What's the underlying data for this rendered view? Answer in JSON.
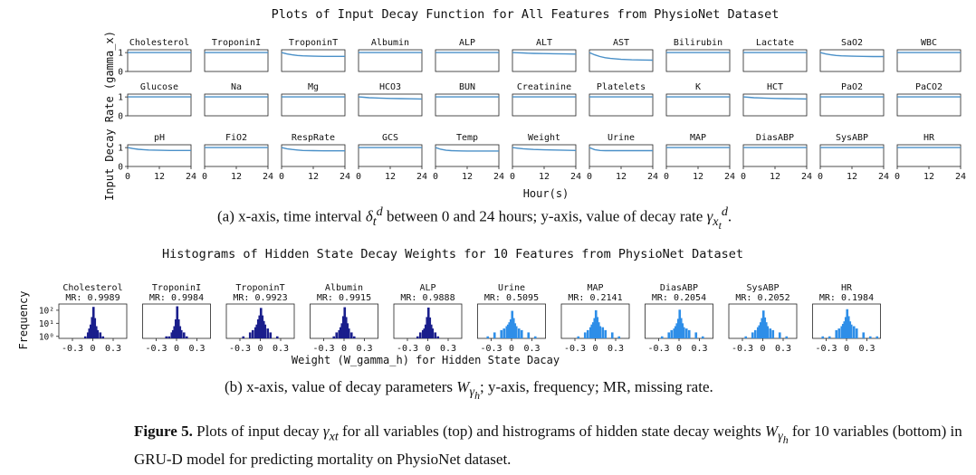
{
  "chart_data": [
    {
      "type": "line",
      "title": "Plots of Input Decay Function for All Features from PhysioNet Dataset",
      "xlabel": "Hour(s)",
      "ylabel": "Input Decay Rate (gamma_x)",
      "xticks": [
        "0",
        "12",
        "24"
      ],
      "yticks": [
        "0",
        "1"
      ],
      "xlim": [
        0,
        24
      ],
      "ylim": [
        0,
        1.15
      ],
      "line_color": "#4a90c8",
      "series": [
        {
          "name": "Cholesterol",
          "x": [
            0,
            2,
            4,
            6,
            8,
            12,
            16,
            20,
            24
          ],
          "y": [
            1,
            1,
            1,
            1,
            1,
            1,
            1,
            1,
            1
          ]
        },
        {
          "name": "TroponinI",
          "x": [
            0,
            2,
            4,
            6,
            8,
            12,
            16,
            20,
            24
          ],
          "y": [
            1,
            1,
            1,
            1,
            1,
            1,
            1,
            1,
            1
          ]
        },
        {
          "name": "TroponinT",
          "x": [
            0,
            2,
            4,
            6,
            8,
            12,
            16,
            20,
            24
          ],
          "y": [
            1,
            0.93,
            0.88,
            0.85,
            0.83,
            0.81,
            0.8,
            0.8,
            0.8
          ]
        },
        {
          "name": "Albumin",
          "x": [
            0,
            2,
            4,
            6,
            8,
            12,
            16,
            20,
            24
          ],
          "y": [
            1,
            1,
            1,
            1,
            1,
            1,
            1,
            1,
            1
          ]
        },
        {
          "name": "ALP",
          "x": [
            0,
            2,
            4,
            6,
            8,
            12,
            16,
            20,
            24
          ],
          "y": [
            1,
            1,
            1,
            1,
            1,
            1,
            1,
            1,
            1
          ]
        },
        {
          "name": "ALT",
          "x": [
            0,
            2,
            4,
            6,
            8,
            12,
            16,
            20,
            24
          ],
          "y": [
            1,
            0.99,
            0.98,
            0.97,
            0.96,
            0.95,
            0.94,
            0.93,
            0.92
          ]
        },
        {
          "name": "AST",
          "x": [
            0,
            2,
            4,
            6,
            8,
            12,
            16,
            20,
            24
          ],
          "y": [
            1,
            0.88,
            0.79,
            0.73,
            0.69,
            0.64,
            0.62,
            0.61,
            0.6
          ]
        },
        {
          "name": "Bilirubin",
          "x": [
            0,
            2,
            4,
            6,
            8,
            12,
            16,
            20,
            24
          ],
          "y": [
            1,
            1,
            1,
            1,
            1,
            1,
            1,
            1,
            1
          ]
        },
        {
          "name": "Lactate",
          "x": [
            0,
            2,
            4,
            6,
            8,
            12,
            16,
            20,
            24
          ],
          "y": [
            1,
            1,
            1,
            1,
            1,
            1,
            1,
            1,
            1
          ]
        },
        {
          "name": "SaO2",
          "x": [
            0,
            2,
            4,
            6,
            8,
            12,
            16,
            20,
            24
          ],
          "y": [
            1,
            0.93,
            0.88,
            0.85,
            0.83,
            0.81,
            0.8,
            0.79,
            0.79
          ]
        },
        {
          "name": "WBC",
          "x": [
            0,
            2,
            4,
            6,
            8,
            12,
            16,
            20,
            24
          ],
          "y": [
            1,
            1,
            1,
            1,
            1,
            1,
            1,
            1,
            1
          ]
        },
        {
          "name": "Glucose",
          "x": [
            0,
            2,
            4,
            6,
            8,
            12,
            16,
            20,
            24
          ],
          "y": [
            1,
            1,
            1,
            1,
            1,
            1,
            1,
            1,
            1
          ]
        },
        {
          "name": "Na",
          "x": [
            0,
            2,
            4,
            6,
            8,
            12,
            16,
            20,
            24
          ],
          "y": [
            1,
            1,
            1,
            1,
            1,
            1,
            1,
            1,
            1
          ]
        },
        {
          "name": "Mg",
          "x": [
            0,
            2,
            4,
            6,
            8,
            12,
            16,
            20,
            24
          ],
          "y": [
            1,
            1,
            1,
            1,
            1,
            1,
            1,
            1,
            1
          ]
        },
        {
          "name": "HCO3",
          "x": [
            0,
            2,
            4,
            6,
            8,
            12,
            16,
            20,
            24
          ],
          "y": [
            1,
            0.98,
            0.96,
            0.95,
            0.94,
            0.92,
            0.91,
            0.9,
            0.89
          ]
        },
        {
          "name": "BUN",
          "x": [
            0,
            2,
            4,
            6,
            8,
            12,
            16,
            20,
            24
          ],
          "y": [
            1,
            1,
            1,
            1,
            1,
            1,
            1,
            1,
            1
          ]
        },
        {
          "name": "Creatinine",
          "x": [
            0,
            2,
            4,
            6,
            8,
            12,
            16,
            20,
            24
          ],
          "y": [
            1,
            1,
            1,
            1,
            1,
            1,
            1,
            1,
            1
          ]
        },
        {
          "name": "Platelets",
          "x": [
            0,
            2,
            4,
            6,
            8,
            12,
            16,
            20,
            24
          ],
          "y": [
            1,
            1,
            1,
            1,
            1,
            1,
            1,
            1,
            1
          ]
        },
        {
          "name": "K",
          "x": [
            0,
            2,
            4,
            6,
            8,
            12,
            16,
            20,
            24
          ],
          "y": [
            1,
            1,
            1,
            1,
            1,
            1,
            1,
            1,
            1
          ]
        },
        {
          "name": "HCT",
          "x": [
            0,
            2,
            4,
            6,
            8,
            12,
            16,
            20,
            24
          ],
          "y": [
            1,
            0.98,
            0.96,
            0.95,
            0.94,
            0.92,
            0.91,
            0.9,
            0.89
          ]
        },
        {
          "name": "PaO2",
          "x": [
            0,
            2,
            4,
            6,
            8,
            12,
            16,
            20,
            24
          ],
          "y": [
            1,
            1,
            1,
            1,
            1,
            1,
            1,
            1,
            1
          ]
        },
        {
          "name": "PaCO2",
          "x": [
            0,
            2,
            4,
            6,
            8,
            12,
            16,
            20,
            24
          ],
          "y": [
            1,
            1,
            1,
            1,
            1,
            1,
            1,
            1,
            1
          ]
        },
        {
          "name": "pH",
          "x": [
            0,
            2,
            4,
            6,
            8,
            12,
            16,
            20,
            24
          ],
          "y": [
            1,
            0.95,
            0.91,
            0.89,
            0.87,
            0.86,
            0.85,
            0.85,
            0.85
          ]
        },
        {
          "name": "FiO2",
          "x": [
            0,
            2,
            4,
            6,
            8,
            12,
            16,
            20,
            24
          ],
          "y": [
            1,
            1,
            1,
            1,
            1,
            1,
            1,
            1,
            1
          ]
        },
        {
          "name": "RespRate",
          "x": [
            0,
            2,
            4,
            6,
            8,
            12,
            16,
            20,
            24
          ],
          "y": [
            1,
            0.94,
            0.9,
            0.87,
            0.85,
            0.84,
            0.83,
            0.83,
            0.83
          ]
        },
        {
          "name": "GCS",
          "x": [
            0,
            2,
            4,
            6,
            8,
            12,
            16,
            20,
            24
          ],
          "y": [
            1,
            1,
            1,
            1,
            1,
            1,
            1,
            1,
            1
          ]
        },
        {
          "name": "Temp",
          "x": [
            0,
            2,
            4,
            6,
            8,
            12,
            16,
            20,
            24
          ],
          "y": [
            1,
            0.91,
            0.86,
            0.84,
            0.83,
            0.82,
            0.82,
            0.82,
            0.82
          ]
        },
        {
          "name": "Weight",
          "x": [
            0,
            2,
            4,
            6,
            8,
            12,
            16,
            20,
            24
          ],
          "y": [
            1,
            0.97,
            0.94,
            0.92,
            0.9,
            0.88,
            0.87,
            0.86,
            0.85
          ]
        },
        {
          "name": "Urine",
          "x": [
            0,
            2,
            4,
            6,
            8,
            12,
            16,
            20,
            24
          ],
          "y": [
            1,
            0.89,
            0.85,
            0.84,
            0.84,
            0.84,
            0.84,
            0.84,
            0.84
          ]
        },
        {
          "name": "MAP",
          "x": [
            0,
            2,
            4,
            6,
            8,
            12,
            16,
            20,
            24
          ],
          "y": [
            1,
            1,
            1,
            1,
            1,
            1,
            1,
            1,
            1
          ]
        },
        {
          "name": "DiasABP",
          "x": [
            0,
            2,
            4,
            6,
            8,
            12,
            16,
            20,
            24
          ],
          "y": [
            1,
            1,
            1,
            1,
            1,
            1,
            1,
            1,
            1
          ]
        },
        {
          "name": "SysABP",
          "x": [
            0,
            2,
            4,
            6,
            8,
            12,
            16,
            20,
            24
          ],
          "y": [
            1,
            1,
            1,
            1,
            1,
            1,
            1,
            1,
            1
          ]
        },
        {
          "name": "HR",
          "x": [
            0,
            2,
            4,
            6,
            8,
            12,
            16,
            20,
            24
          ],
          "y": [
            1,
            1,
            1,
            1,
            1,
            1,
            1,
            1,
            1
          ]
        }
      ]
    },
    {
      "type": "bar",
      "title": "Histograms of Hidden State Decay Weights for 10 Features from PhysioNet Dataset",
      "xlabel": "Weight (W_gamma_h) for Hidden State Dacay",
      "ylabel": "Frequency",
      "xticks": [
        "-0.3",
        "0",
        "0.3"
      ],
      "yticks": [
        "10⁰",
        "10¹",
        "10²"
      ],
      "xlim": [
        -0.5,
        0.5
      ],
      "yscale": "log",
      "ylim": [
        1,
        300
      ],
      "colors": {
        "observed": "#1a1f8c",
        "frequent": "#2e8ee8"
      },
      "mr_prefix": "MR: ",
      "bin_centers": [
        -0.45,
        -0.35,
        -0.25,
        -0.15,
        -0.11,
        -0.07,
        -0.05,
        -0.03,
        -0.01,
        0.01,
        0.03,
        0.05,
        0.07,
        0.11,
        0.15,
        0.25,
        0.35,
        0.45
      ],
      "series": [
        {
          "name": "Cholesterol",
          "mr": "0.9989",
          "color_group": "observed",
          "values": [
            0,
            0,
            0,
            0,
            1,
            2,
            4,
            8,
            30,
            180,
            25,
            6,
            3,
            2,
            1,
            0,
            0,
            0
          ]
        },
        {
          "name": "TroponinI",
          "mr": "0.9984",
          "color_group": "observed",
          "values": [
            0,
            0,
            0,
            1,
            1,
            2,
            3,
            6,
            20,
            200,
            20,
            6,
            3,
            2,
            1,
            0,
            0,
            0
          ]
        },
        {
          "name": "TroponinT",
          "mr": "0.9923",
          "color_group": "observed",
          "values": [
            0,
            0,
            1,
            2,
            3,
            5,
            8,
            20,
            40,
            150,
            40,
            15,
            8,
            4,
            2,
            1,
            0,
            0
          ]
        },
        {
          "name": "Albumin",
          "mr": "0.9915",
          "color_group": "observed",
          "values": [
            0,
            0,
            0,
            1,
            2,
            3,
            5,
            10,
            35,
            170,
            30,
            10,
            4,
            2,
            1,
            0,
            0,
            0
          ]
        },
        {
          "name": "ALP",
          "mr": "0.9888",
          "color_group": "observed",
          "values": [
            0,
            0,
            0,
            1,
            2,
            3,
            4,
            8,
            30,
            160,
            28,
            8,
            4,
            2,
            1,
            0,
            0,
            0
          ]
        },
        {
          "name": "Urine",
          "mr": "0.5095",
          "color_group": "frequent",
          "values": [
            0,
            1,
            2,
            3,
            4,
            6,
            8,
            12,
            20,
            90,
            25,
            10,
            6,
            4,
            3,
            2,
            1,
            0
          ]
        },
        {
          "name": "MAP",
          "mr": "0.2141",
          "color_group": "frequent",
          "values": [
            0,
            0,
            1,
            2,
            3,
            5,
            8,
            12,
            25,
            100,
            30,
            12,
            6,
            5,
            3,
            2,
            1,
            0
          ]
        },
        {
          "name": "DiasABP",
          "mr": "0.2054",
          "color_group": "frequent",
          "values": [
            0,
            0,
            1,
            2,
            3,
            4,
            6,
            10,
            22,
            110,
            25,
            10,
            5,
            4,
            3,
            2,
            1,
            0
          ]
        },
        {
          "name": "SysABP",
          "mr": "0.2052",
          "color_group": "frequent",
          "values": [
            0,
            0,
            1,
            2,
            3,
            5,
            7,
            12,
            25,
            95,
            28,
            12,
            6,
            4,
            3,
            2,
            1,
            0
          ]
        },
        {
          "name": "HR",
          "mr": "0.1984",
          "color_group": "frequent",
          "values": [
            0,
            1,
            1,
            3,
            4,
            6,
            9,
            14,
            30,
            120,
            35,
            14,
            8,
            6,
            4,
            2,
            1,
            1
          ]
        }
      ]
    }
  ],
  "captions": {
    "a_prefix": "(a) x-axis, time interval ",
    "a_mid": " between 0 and 24 hours; y-axis, value of decay rate ",
    "a_suffix": ".",
    "b_prefix": "(b) x-axis, value of decay parameters ",
    "b_suffix": "; y-axis, frequency; MR, missing rate.",
    "fig_label": "Figure 5.",
    "fig_text_1": " Plots of input decay ",
    "fig_text_2": " for all variables (top) and histrograms of hidden state decay weights ",
    "fig_text_3": " for 10 variables (bottom) in GRU-D model for predicting mortality on PhysioNet dataset."
  }
}
